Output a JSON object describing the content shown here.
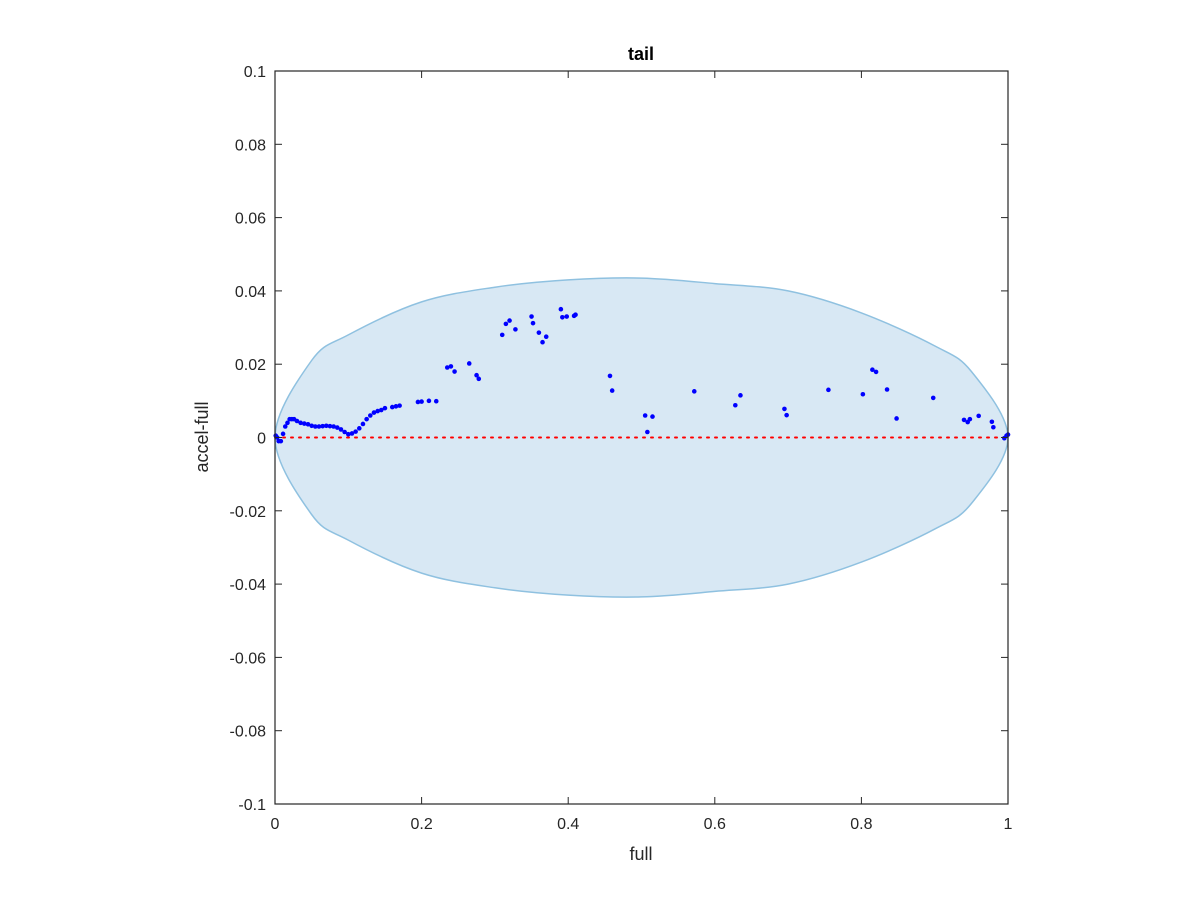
{
  "chart_data": {
    "type": "scatter",
    "title": "tail",
    "xlabel": "full",
    "ylabel": "accel-full",
    "xlim": [
      0,
      1
    ],
    "ylim": [
      -0.1,
      0.1
    ],
    "xticks": [
      0,
      0.2,
      0.4,
      0.6,
      0.8,
      1
    ],
    "xtick_labels": [
      "0",
      "0.2",
      "0.4",
      "0.6",
      "0.8",
      "1"
    ],
    "yticks": [
      0.1,
      0.08,
      0.06,
      0.04,
      0.02,
      0,
      -0.02,
      -0.04,
      -0.06,
      -0.08,
      -0.1
    ],
    "ytick_labels": [
      "0.1",
      "0.08",
      "0.06",
      "0.04",
      "0.02",
      "0",
      "-0.02",
      "-0.04",
      "-0.06",
      "-0.08",
      "-0.1"
    ],
    "grid": false,
    "colors": {
      "points": "#0000ff",
      "ellipse_fill": "#d8e8f4",
      "ellipse_edge": "#8fc1e0",
      "zero_line": "#ff0000",
      "axes": "#262626"
    },
    "ellipse": {
      "x_points": [
        0,
        0.05,
        0.1,
        0.2,
        0.3,
        0.4,
        0.5,
        0.6,
        0.7,
        0.8,
        0.9,
        0.95,
        1,
        0.95,
        0.9,
        0.8,
        0.7,
        0.6,
        0.5,
        0.4,
        0.3,
        0.2,
        0.1,
        0.05,
        0
      ],
      "y_points": [
        0,
        0.021,
        0.028,
        0.037,
        0.041,
        0.043,
        0.0435,
        0.042,
        0.04,
        0.034,
        0.025,
        0.018,
        0,
        -0.018,
        -0.025,
        -0.034,
        -0.04,
        -0.042,
        -0.0435,
        -0.043,
        -0.041,
        -0.037,
        -0.028,
        -0.021,
        0
      ]
    },
    "zero_line": {
      "y": 0,
      "style": "dotted"
    },
    "series": [
      {
        "x": [
          0.001,
          0.003,
          0.005,
          0.008,
          0.011,
          0.014,
          0.017,
          0.02,
          0.023,
          0.026,
          0.03,
          0.035,
          0.04,
          0.045,
          0.05,
          0.055,
          0.06,
          0.065,
          0.07,
          0.075,
          0.08,
          0.085,
          0.09,
          0.095,
          0.1,
          0.105,
          0.11,
          0.115,
          0.12,
          0.125,
          0.13,
          0.135,
          0.14,
          0.145,
          0.15,
          0.16,
          0.165,
          0.17,
          0.195,
          0.2,
          0.21,
          0.22,
          0.235,
          0.24,
          0.245,
          0.265,
          0.275,
          0.278,
          0.31,
          0.315,
          0.32,
          0.328,
          0.35,
          0.352,
          0.36,
          0.365,
          0.37,
          0.39,
          0.392,
          0.398,
          0.408,
          0.41,
          0.457,
          0.46,
          0.505,
          0.508,
          0.515,
          0.572,
          0.628,
          0.635,
          0.695,
          0.698,
          0.755,
          0.802,
          0.815,
          0.82,
          0.835,
          0.848,
          0.898,
          0.94,
          0.945,
          0.948,
          0.96,
          0.978,
          0.98,
          0.995,
          0.998,
          1.0
        ],
        "y": [
          0.0005,
          0.0,
          -0.001,
          -0.001,
          0.001,
          0.003,
          0.004,
          0.005,
          0.005,
          0.005,
          0.0045,
          0.004,
          0.0038,
          0.0036,
          0.0032,
          0.003,
          0.003,
          0.0031,
          0.0032,
          0.0031,
          0.003,
          0.0027,
          0.0022,
          0.0015,
          0.0009,
          0.0011,
          0.0016,
          0.0025,
          0.0037,
          0.005,
          0.006,
          0.0068,
          0.0072,
          0.0075,
          0.008,
          0.0083,
          0.0085,
          0.0087,
          0.0097,
          0.0098,
          0.01,
          0.0099,
          0.0191,
          0.0194,
          0.018,
          0.0202,
          0.017,
          0.016,
          0.028,
          0.031,
          0.0319,
          0.0295,
          0.033,
          0.0312,
          0.0286,
          0.026,
          0.0275,
          0.035,
          0.0328,
          0.033,
          0.0332,
          0.0335,
          0.0168,
          0.0128,
          0.006,
          0.0015,
          0.0057,
          0.0126,
          0.0088,
          0.0115,
          0.0078,
          0.0061,
          0.013,
          0.0118,
          0.0185,
          0.0179,
          0.0131,
          0.0052,
          0.0108,
          0.0048,
          0.0042,
          0.005,
          0.0059,
          0.0043,
          0.0028,
          -0.0002,
          0.0005,
          0.0008
        ]
      }
    ]
  }
}
